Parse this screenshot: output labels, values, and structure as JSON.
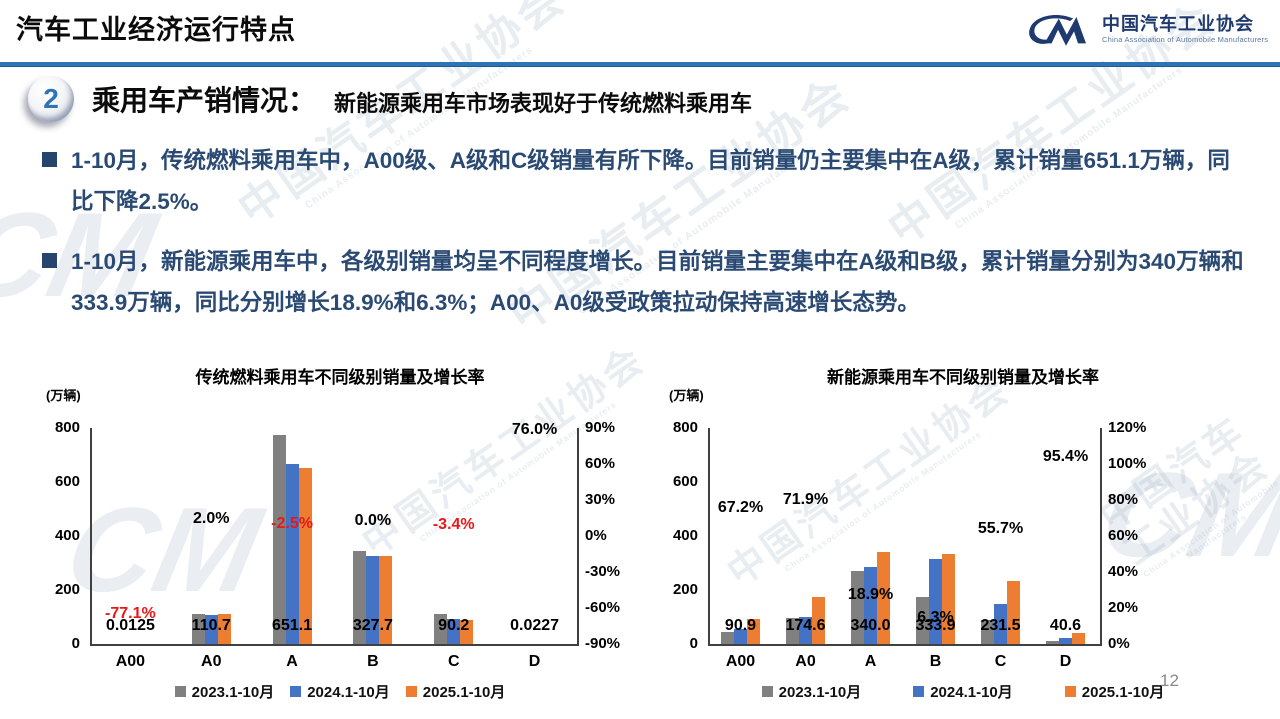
{
  "page": {
    "title": "汽车工业经济运行特点",
    "page_number": "12"
  },
  "logo": {
    "cn": "中国汽车工业协会",
    "en": "China Association of Automobile Manufacturers",
    "mark": "CM"
  },
  "section": {
    "number": "2",
    "title": "乘用车产销情况：",
    "subtitle": "新能源乘用车市场表现好于传统燃料乘用车"
  },
  "bullets": [
    {
      "text": "1-10月，传统燃料乘用车中，A00级、A级和C级销量有所下降。目前销量仍主要集中在A级，累计销量651.1万辆，同比下降2.5%。"
    },
    {
      "text": "1-10月，新能源乘用车中，各级别销量均呈不同程度增长。目前销量主要集中在A级和B级，累计销量分别为340万辆和333.9万辆，同比分别增长18.9%和6.3%；A00、A0级受政策拉动保持高速增长态势。"
    }
  ],
  "watermark": {
    "cn": "中国汽车工业协会",
    "en": "China Association of Automobile Manufacturers",
    "mark": "CM"
  },
  "colors": {
    "accent_blue": "#2E74B6",
    "navy_text": "#2A4A73",
    "logo_navy": "#1E3A6E",
    "negative_red": "#E81818",
    "series_gray": "#808080",
    "series_blue": "#4472C4",
    "series_orange": "#ED7D31"
  },
  "chart_data": [
    {
      "type": "bar",
      "title": "传统燃料乘用车不同级别销量及增长率",
      "unit_label": "(万辆)",
      "ylabel": "万辆",
      "legend_position": "bottom",
      "grid": false,
      "categories": [
        "A00",
        "A0",
        "A",
        "B",
        "C",
        "D"
      ],
      "series": [
        {
          "name": "2023.1-10月",
          "color": "#808080",
          "values": [
            0.05,
            112,
            775,
            343,
            111,
            0.03
          ]
        },
        {
          "name": "2024.1-10月",
          "color": "#4472C4",
          "values": [
            0.055,
            108.5,
            667.8,
            327.7,
            93.4,
            0.013
          ]
        },
        {
          "name": "2025.1-10月",
          "color": "#ED7D31",
          "values": [
            0.0125,
            110.7,
            651.1,
            327.7,
            90.2,
            0.0227
          ]
        }
      ],
      "value_labels": [
        "0.0125",
        "110.7",
        "651.1",
        "327.7",
        "90.2",
        "0.0227"
      ],
      "growth_labels": [
        {
          "text": "-77.1%",
          "value": -77.1,
          "negative": true
        },
        {
          "text": "2.0%",
          "value": 2.0,
          "negative": false
        },
        {
          "text": "-2.5%",
          "value": -2.5,
          "negative": true
        },
        {
          "text": "0.0%",
          "value": 0.0,
          "negative": false
        },
        {
          "text": "-3.4%",
          "value": -3.4,
          "negative": true
        },
        {
          "text": "76.0%",
          "value": 76.0,
          "negative": false
        }
      ],
      "left_axis": {
        "min": 0,
        "max": 800,
        "ticks": [
          "800",
          "600",
          "400",
          "200",
          "0"
        ]
      },
      "right_axis": {
        "min": -90,
        "max": 90,
        "ticks": [
          "90%",
          "60%",
          "30%",
          "0%",
          "-30%",
          "-60%",
          "-90%"
        ]
      }
    },
    {
      "type": "bar",
      "title": "新能源乘用车不同级别销量及增长率",
      "unit_label": "(万辆)",
      "ylabel": "万辆",
      "legend_position": "bottom",
      "grid": false,
      "categories": [
        "A00",
        "A0",
        "A",
        "B",
        "C",
        "D"
      ],
      "series": [
        {
          "name": "2023.1-10月",
          "color": "#808080",
          "values": [
            45,
            95,
            270,
            175,
            88,
            10
          ]
        },
        {
          "name": "2024.1-10月",
          "color": "#4472C4",
          "values": [
            54.4,
            101.6,
            286,
            314.1,
            148.7,
            20.8
          ]
        },
        {
          "name": "2025.1-10月",
          "color": "#ED7D31",
          "values": [
            90.9,
            174.6,
            340.0,
            333.9,
            231.5,
            40.6
          ]
        }
      ],
      "value_labels": [
        "90.9",
        "174.6",
        "340.0",
        "333.9",
        "231.5",
        "40.6"
      ],
      "growth_labels": [
        {
          "text": "67.2%",
          "value": 67.2,
          "negative": false
        },
        {
          "text": "71.9%",
          "value": 71.9,
          "negative": false
        },
        {
          "text": "18.9%",
          "value": 18.9,
          "negative": false
        },
        {
          "text": "6.3%",
          "value": 6.3,
          "negative": false
        },
        {
          "text": "55.7%",
          "value": 55.7,
          "negative": false
        },
        {
          "text": "95.4%",
          "value": 95.4,
          "negative": false
        }
      ],
      "left_axis": {
        "min": 0,
        "max": 800,
        "ticks": [
          "800",
          "600",
          "400",
          "200",
          "0"
        ]
      },
      "right_axis": {
        "min": 0,
        "max": 120,
        "ticks": [
          "120%",
          "100%",
          "80%",
          "60%",
          "40%",
          "20%",
          "0%"
        ]
      }
    }
  ]
}
